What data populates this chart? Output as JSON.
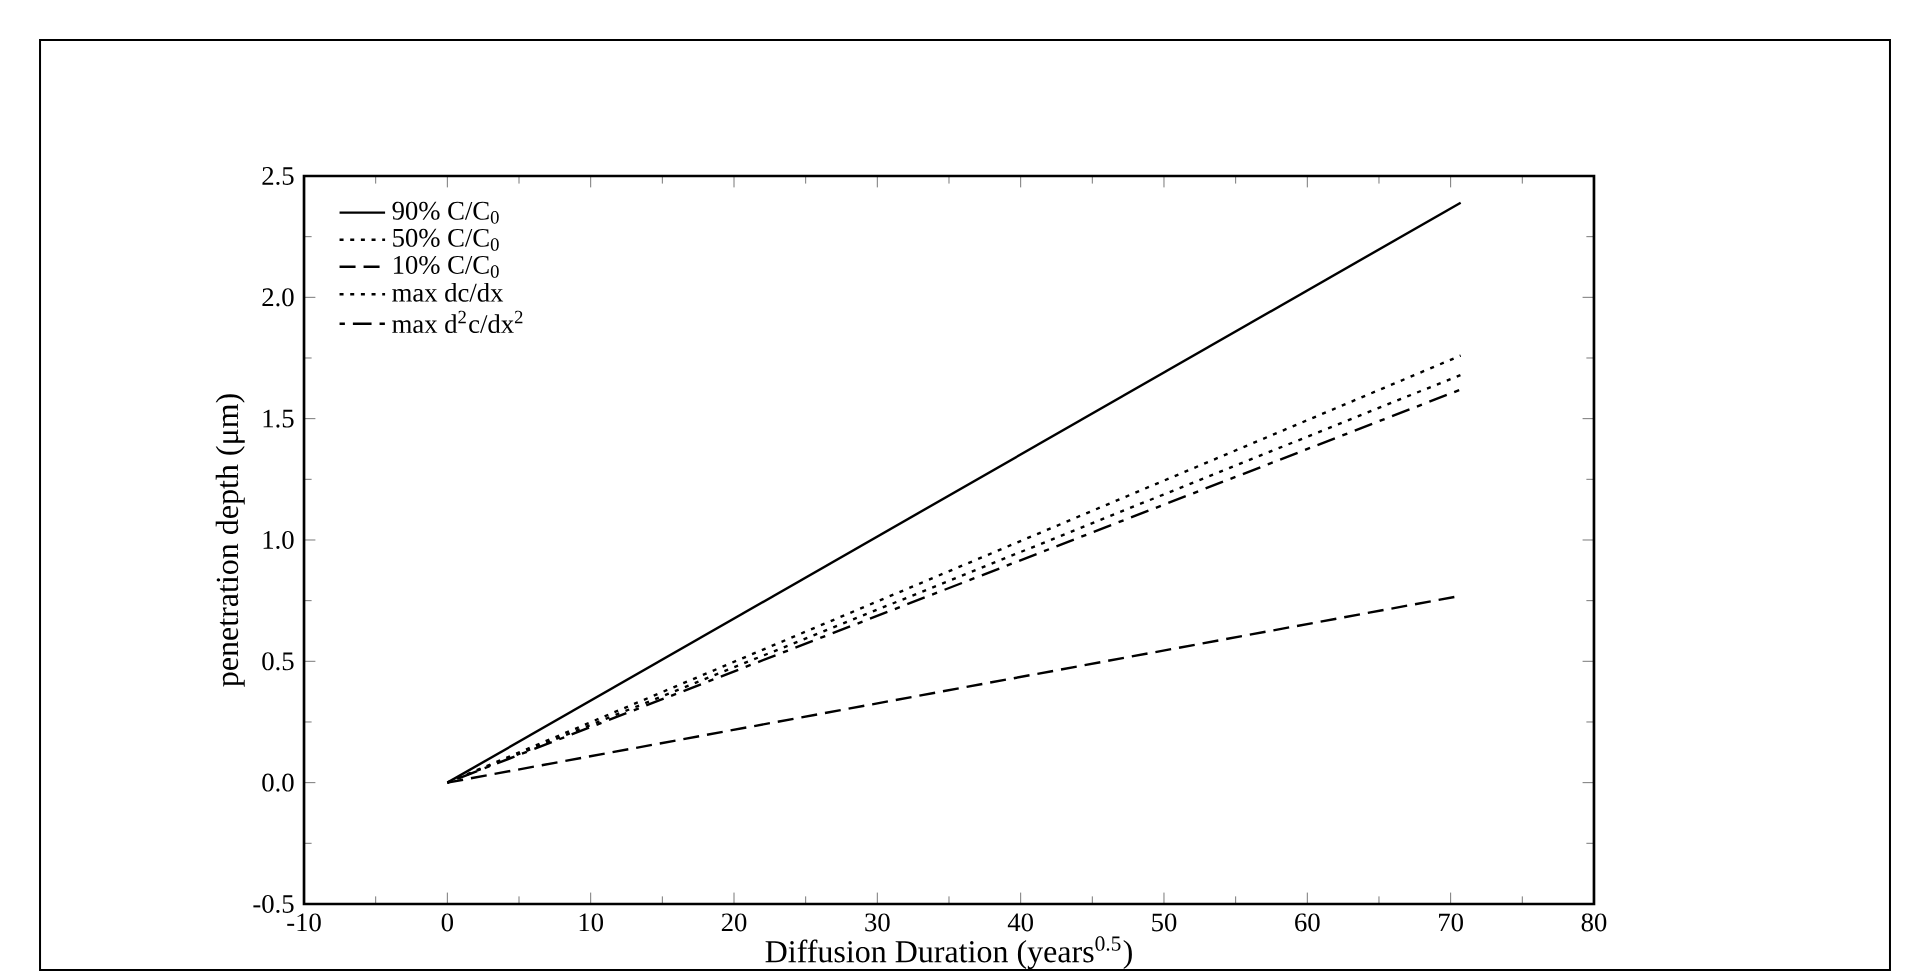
{
  "chart_data": {
    "type": "line",
    "xlabel": "Diffusion Duration (years$^{0.5}$)",
    "ylabel": "penetration depth (μm)",
    "x": [
      0,
      70.7
    ],
    "series": [
      {
        "name": "90% C/C$_{0}$",
        "color": "#000000",
        "line_style": "solid",
        "values": [
          0,
          2.39
        ]
      },
      {
        "name": "50% C/C$_{0}$",
        "color": "#000000",
        "line_style": "dotted",
        "values": [
          0,
          1.76
        ]
      },
      {
        "name": "10% C/C$_{0}$",
        "color": "#000000",
        "line_style": "dashed",
        "values": [
          0,
          0.77
        ]
      },
      {
        "name": "max dc/dx",
        "color": "#000000",
        "line_style": "dotted",
        "values": [
          0,
          1.68
        ]
      },
      {
        "name": "max d$^{2}$c/dx$^{2}$",
        "color": "#000000",
        "line_style": "dashdot",
        "values": [
          0,
          1.62
        ]
      }
    ],
    "xlim": [
      -10,
      80
    ],
    "xticks": [
      -10,
      0,
      10,
      20,
      30,
      40,
      50,
      60,
      70,
      80
    ],
    "ylim": [
      -0.5,
      2.5
    ],
    "yticks": [
      {
        "value": -0.5,
        "label": "-0.5"
      },
      {
        "value": 0,
        "label": "0.0"
      },
      {
        "value": 0.5,
        "label": "0.5"
      },
      {
        "value": 1,
        "label": "1.0"
      },
      {
        "value": 1.5,
        "label": "1.5"
      },
      {
        "value": 2,
        "label": "2.0"
      },
      {
        "value": 2.5,
        "label": "2.5"
      }
    ],
    "grid": false,
    "legend": "top left",
    "marker": "none"
  }
}
